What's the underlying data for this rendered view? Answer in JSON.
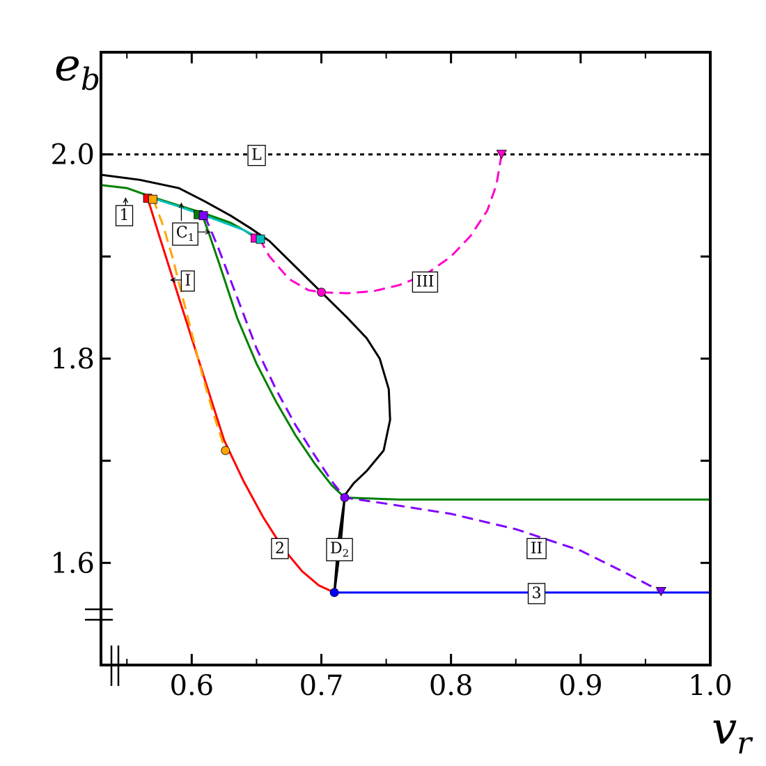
{
  "chart_data": {
    "type": "line",
    "title": "",
    "xlabel": "v",
    "xlabel_sub": "r",
    "ylabel": "e",
    "ylabel_sub": "b",
    "xlim": [
      0.53,
      1.0
    ],
    "ylim": [
      1.5,
      2.1
    ],
    "x_ticks": [
      0.6,
      0.7,
      0.8,
      0.9,
      1.0
    ],
    "x_tick_labels": [
      "0.6",
      "0.7",
      "0.8",
      "0.9",
      "1.0"
    ],
    "y_ticks": [
      1.6,
      1.8,
      2.0
    ],
    "y_tick_labels": [
      "1.6",
      "1.8",
      "2.0"
    ],
    "y_minor_ticks": [
      1.6,
      1.7,
      1.8,
      1.9,
      2.0
    ],
    "x_minor_ticks": [
      0.55,
      0.6,
      0.65,
      0.7,
      0.75,
      0.8,
      0.85,
      0.9,
      0.95
    ],
    "axis_breaks": [
      "x",
      "y"
    ],
    "grid": false,
    "legend": "none",
    "series": [
      {
        "key": "L",
        "color": "#000000",
        "dash": "dotted",
        "points": [
          [
            0.53,
            2.0
          ],
          [
            1.0,
            2.0
          ]
        ]
      },
      {
        "key": "black-boundary",
        "color": "#000000",
        "dash": "solid",
        "points": [
          [
            0.53,
            1.98
          ],
          [
            0.56,
            1.975
          ],
          [
            0.59,
            1.967
          ],
          [
            0.61,
            1.954
          ],
          [
            0.63,
            1.94
          ],
          [
            0.645,
            1.928
          ],
          [
            0.66,
            1.915
          ],
          [
            0.68,
            1.89
          ],
          [
            0.7,
            1.865
          ],
          [
            0.72,
            1.84
          ],
          [
            0.735,
            1.82
          ],
          [
            0.745,
            1.8
          ],
          [
            0.752,
            1.77
          ],
          [
            0.753,
            1.74
          ],
          [
            0.748,
            1.71
          ],
          [
            0.735,
            1.69
          ],
          [
            0.725,
            1.678
          ],
          [
            0.719,
            1.668
          ],
          [
            0.718,
            1.664
          ],
          [
            0.715,
            1.62
          ],
          [
            0.71,
            1.57
          ]
        ]
      },
      {
        "key": "1",
        "color": "#008000",
        "dash": "solid",
        "points": [
          [
            0.53,
            1.97
          ],
          [
            0.55,
            1.967
          ],
          [
            0.57,
            1.958
          ],
          [
            0.59,
            1.95
          ],
          [
            0.61,
            1.942
          ],
          [
            0.63,
            1.933
          ],
          [
            0.64,
            1.926
          ],
          [
            0.65,
            1.918
          ]
        ]
      },
      {
        "key": "cyan",
        "color": "#00bfbf",
        "dash": "solid",
        "points": [
          [
            0.57,
            1.957
          ],
          [
            0.59,
            1.949
          ],
          [
            0.608,
            1.941
          ],
          [
            0.625,
            1.933
          ],
          [
            0.64,
            1.926
          ],
          [
            0.652,
            1.918
          ]
        ]
      },
      {
        "key": "green-branch",
        "color": "#008000",
        "dash": "solid",
        "points": [
          [
            0.608,
            1.941
          ],
          [
            0.614,
            1.92
          ],
          [
            0.622,
            1.89
          ],
          [
            0.635,
            1.84
          ],
          [
            0.65,
            1.795
          ],
          [
            0.665,
            1.758
          ],
          [
            0.68,
            1.725
          ],
          [
            0.695,
            1.697
          ],
          [
            0.708,
            1.676
          ],
          [
            0.718,
            1.664
          ],
          [
            0.76,
            1.662
          ],
          [
            1.0,
            1.662
          ]
        ]
      },
      {
        "key": "II",
        "color": "#7f00ff",
        "dash": "dashed",
        "points": [
          [
            0.61,
            1.94
          ],
          [
            0.62,
            1.91
          ],
          [
            0.635,
            1.86
          ],
          [
            0.65,
            1.81
          ],
          [
            0.665,
            1.77
          ],
          [
            0.68,
            1.735
          ],
          [
            0.695,
            1.705
          ],
          [
            0.708,
            1.68
          ],
          [
            0.718,
            1.664
          ],
          [
            0.75,
            1.658
          ],
          [
            0.8,
            1.648
          ],
          [
            0.85,
            1.633
          ],
          [
            0.9,
            1.612
          ],
          [
            0.935,
            1.59
          ],
          [
            0.962,
            1.572
          ]
        ]
      },
      {
        "key": "2",
        "color": "#ff0000",
        "dash": "solid",
        "points": [
          [
            0.566,
            1.957
          ],
          [
            0.575,
            1.92
          ],
          [
            0.585,
            1.88
          ],
          [
            0.595,
            1.84
          ],
          [
            0.605,
            1.8
          ],
          [
            0.615,
            1.76
          ],
          [
            0.625,
            1.72
          ],
          [
            0.64,
            1.68
          ],
          [
            0.655,
            1.645
          ],
          [
            0.67,
            1.615
          ],
          [
            0.685,
            1.592
          ],
          [
            0.698,
            1.578
          ],
          [
            0.71,
            1.571
          ]
        ]
      },
      {
        "key": "I",
        "color": "#ffa500",
        "dash": "dashed",
        "points": [
          [
            0.57,
            1.957
          ],
          [
            0.578,
            1.93
          ],
          [
            0.585,
            1.9
          ],
          [
            0.593,
            1.86
          ],
          [
            0.601,
            1.82
          ],
          [
            0.609,
            1.78
          ],
          [
            0.617,
            1.745
          ],
          [
            0.626,
            1.71
          ]
        ]
      },
      {
        "key": "III",
        "color": "#ff00cc",
        "dash": "dashed",
        "points": [
          [
            0.652,
            1.918
          ],
          [
            0.66,
            1.9
          ],
          [
            0.675,
            1.878
          ],
          [
            0.69,
            1.867
          ],
          [
            0.7,
            1.865
          ],
          [
            0.72,
            1.864
          ],
          [
            0.74,
            1.866
          ],
          [
            0.76,
            1.872
          ],
          [
            0.78,
            1.882
          ],
          [
            0.8,
            1.9
          ],
          [
            0.815,
            1.92
          ],
          [
            0.828,
            1.945
          ],
          [
            0.835,
            1.97
          ],
          [
            0.839,
            2.0
          ]
        ]
      },
      {
        "key": "3",
        "color": "#0000ff",
        "dash": "solid",
        "points": [
          [
            0.71,
            1.571
          ],
          [
            1.0,
            1.571
          ]
        ]
      },
      {
        "key": "D2",
        "color": "#000000",
        "dash": "solid",
        "points": [
          [
            0.71,
            1.571
          ],
          [
            0.713,
            1.62
          ],
          [
            0.718,
            1.664
          ]
        ]
      }
    ],
    "markers": [
      {
        "shape": "square",
        "color": "#ff0000",
        "x": 0.566,
        "y": 1.957
      },
      {
        "shape": "square",
        "color": "#ffa500",
        "x": 0.57,
        "y": 1.956
      },
      {
        "shape": "square",
        "color": "#008000",
        "x": 0.605,
        "y": 1.941
      },
      {
        "shape": "square",
        "color": "#7f00ff",
        "x": 0.609,
        "y": 1.94
      },
      {
        "shape": "square",
        "color": "#ff00cc",
        "x": 0.649,
        "y": 1.918
      },
      {
        "shape": "square",
        "color": "#00bfbf",
        "x": 0.653,
        "y": 1.917
      },
      {
        "shape": "circle",
        "color": "#ff00cc",
        "x": 0.7,
        "y": 1.865
      },
      {
        "shape": "circle",
        "color": "#ffa500",
        "x": 0.626,
        "y": 1.71
      },
      {
        "shape": "circle",
        "color": "#7f00ff",
        "x": 0.718,
        "y": 1.664
      },
      {
        "shape": "circle",
        "color": "#0000ff",
        "x": 0.71,
        "y": 1.571
      },
      {
        "shape": "triangle-down",
        "color": "#ff00cc",
        "x": 0.839,
        "y": 2.0
      },
      {
        "shape": "triangle-down",
        "color": "#7f00ff",
        "x": 0.962,
        "y": 1.572
      }
    ],
    "annotations": [
      {
        "text": "L",
        "x": 0.65,
        "y": 2.0
      },
      {
        "text": "1",
        "x": 0.548,
        "y": 1.941
      },
      {
        "text": "C",
        "sub": "1",
        "x": 0.595,
        "y": 1.924
      },
      {
        "text": "I",
        "x": 0.597,
        "y": 1.877
      },
      {
        "text": "III",
        "x": 0.78,
        "y": 1.876
      },
      {
        "text": "2",
        "x": 0.668,
        "y": 1.615
      },
      {
        "text": "D",
        "sub": "2",
        "x": 0.714,
        "y": 1.615
      },
      {
        "text": "II",
        "x": 0.866,
        "y": 1.615
      },
      {
        "text": "3",
        "x": 0.866,
        "y": 1.571
      }
    ],
    "arrows": [
      {
        "from": [
          0.549,
          1.93
        ],
        "to": [
          0.549,
          1.957
        ]
      },
      {
        "from": [
          0.592,
          1.935
        ],
        "to": [
          0.592,
          1.952
        ]
      },
      {
        "from": [
          0.605,
          1.924
        ],
        "to": [
          0.614,
          1.924
        ]
      },
      {
        "from": [
          0.592,
          1.877
        ],
        "to": [
          0.584,
          1.877
        ]
      }
    ]
  }
}
